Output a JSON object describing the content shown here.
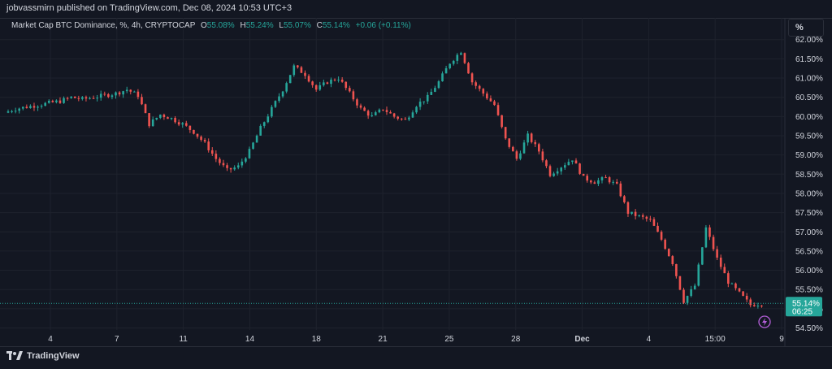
{
  "publish": {
    "text": "jobvassmirn published on TradingView.com, Dec 08, 2024 10:53 UTC+3"
  },
  "legend": {
    "symbol": "Market Cap BTC Dominance, %, 4h, CRYPTOCAP",
    "o_label": "O",
    "o_value": "55.08%",
    "h_label": "H",
    "h_value": "55.24%",
    "l_label": "L",
    "l_value": "55.07%",
    "c_label": "C",
    "c_value": "55.14%",
    "change": "+0.06 (+0.11%)"
  },
  "scale_button": {
    "label": "%"
  },
  "price_tag": {
    "price": "55.14%",
    "countdown": "06:25"
  },
  "brand": {
    "name": "TradingView"
  },
  "colors": {
    "up": "#26a69a",
    "down": "#ef5350",
    "background": "#131722",
    "grid": "#1e222d",
    "text": "#d1d4dc"
  },
  "icons": [
    "tradingview-logo-icon",
    "lightning-icon"
  ],
  "chart_data": {
    "type": "candlestick",
    "title": "Market Cap BTC Dominance, %, 4h, CRYPTOCAP",
    "xlabel": "",
    "ylabel": "",
    "y_ticks": [
      "54.50%",
      "55.00%",
      "55.50%",
      "56.00%",
      "56.50%",
      "57.00%",
      "57.50%",
      "58.00%",
      "58.50%",
      "59.00%",
      "59.50%",
      "60.00%",
      "60.50%",
      "61.00%",
      "61.50%",
      "62.00%"
    ],
    "x_ticks": [
      "4",
      "7",
      "11",
      "14",
      "18",
      "21",
      "25",
      "28",
      "Dec",
      "4",
      "15:00",
      "9"
    ],
    "ylim": [
      54.3,
      62.1
    ],
    "last_price": 55.14,
    "grid": true,
    "close_path": [
      60.1,
      60.2,
      60.25,
      60.3,
      60.35,
      60.4,
      60.5,
      60.45,
      60.5,
      60.55,
      60.6,
      60.7,
      60.55,
      59.8,
      60.05,
      59.95,
      59.8,
      59.6,
      59.3,
      58.9,
      58.6,
      58.7,
      59.1,
      59.7,
      60.2,
      60.7,
      61.3,
      61.1,
      60.7,
      60.9,
      61.0,
      60.6,
      60.2,
      60.0,
      60.2,
      60.0,
      59.9,
      60.3,
      60.5,
      60.9,
      61.4,
      61.7,
      60.9,
      60.6,
      60.3,
      59.4,
      58.9,
      59.5,
      59.1,
      58.5,
      58.7,
      58.9,
      58.4,
      58.3,
      58.4,
      58.2,
      57.5,
      57.4,
      57.3,
      56.8,
      56.2,
      55.2,
      55.6,
      57.1,
      56.3,
      55.7,
      55.4,
      55.1,
      55.14
    ]
  }
}
